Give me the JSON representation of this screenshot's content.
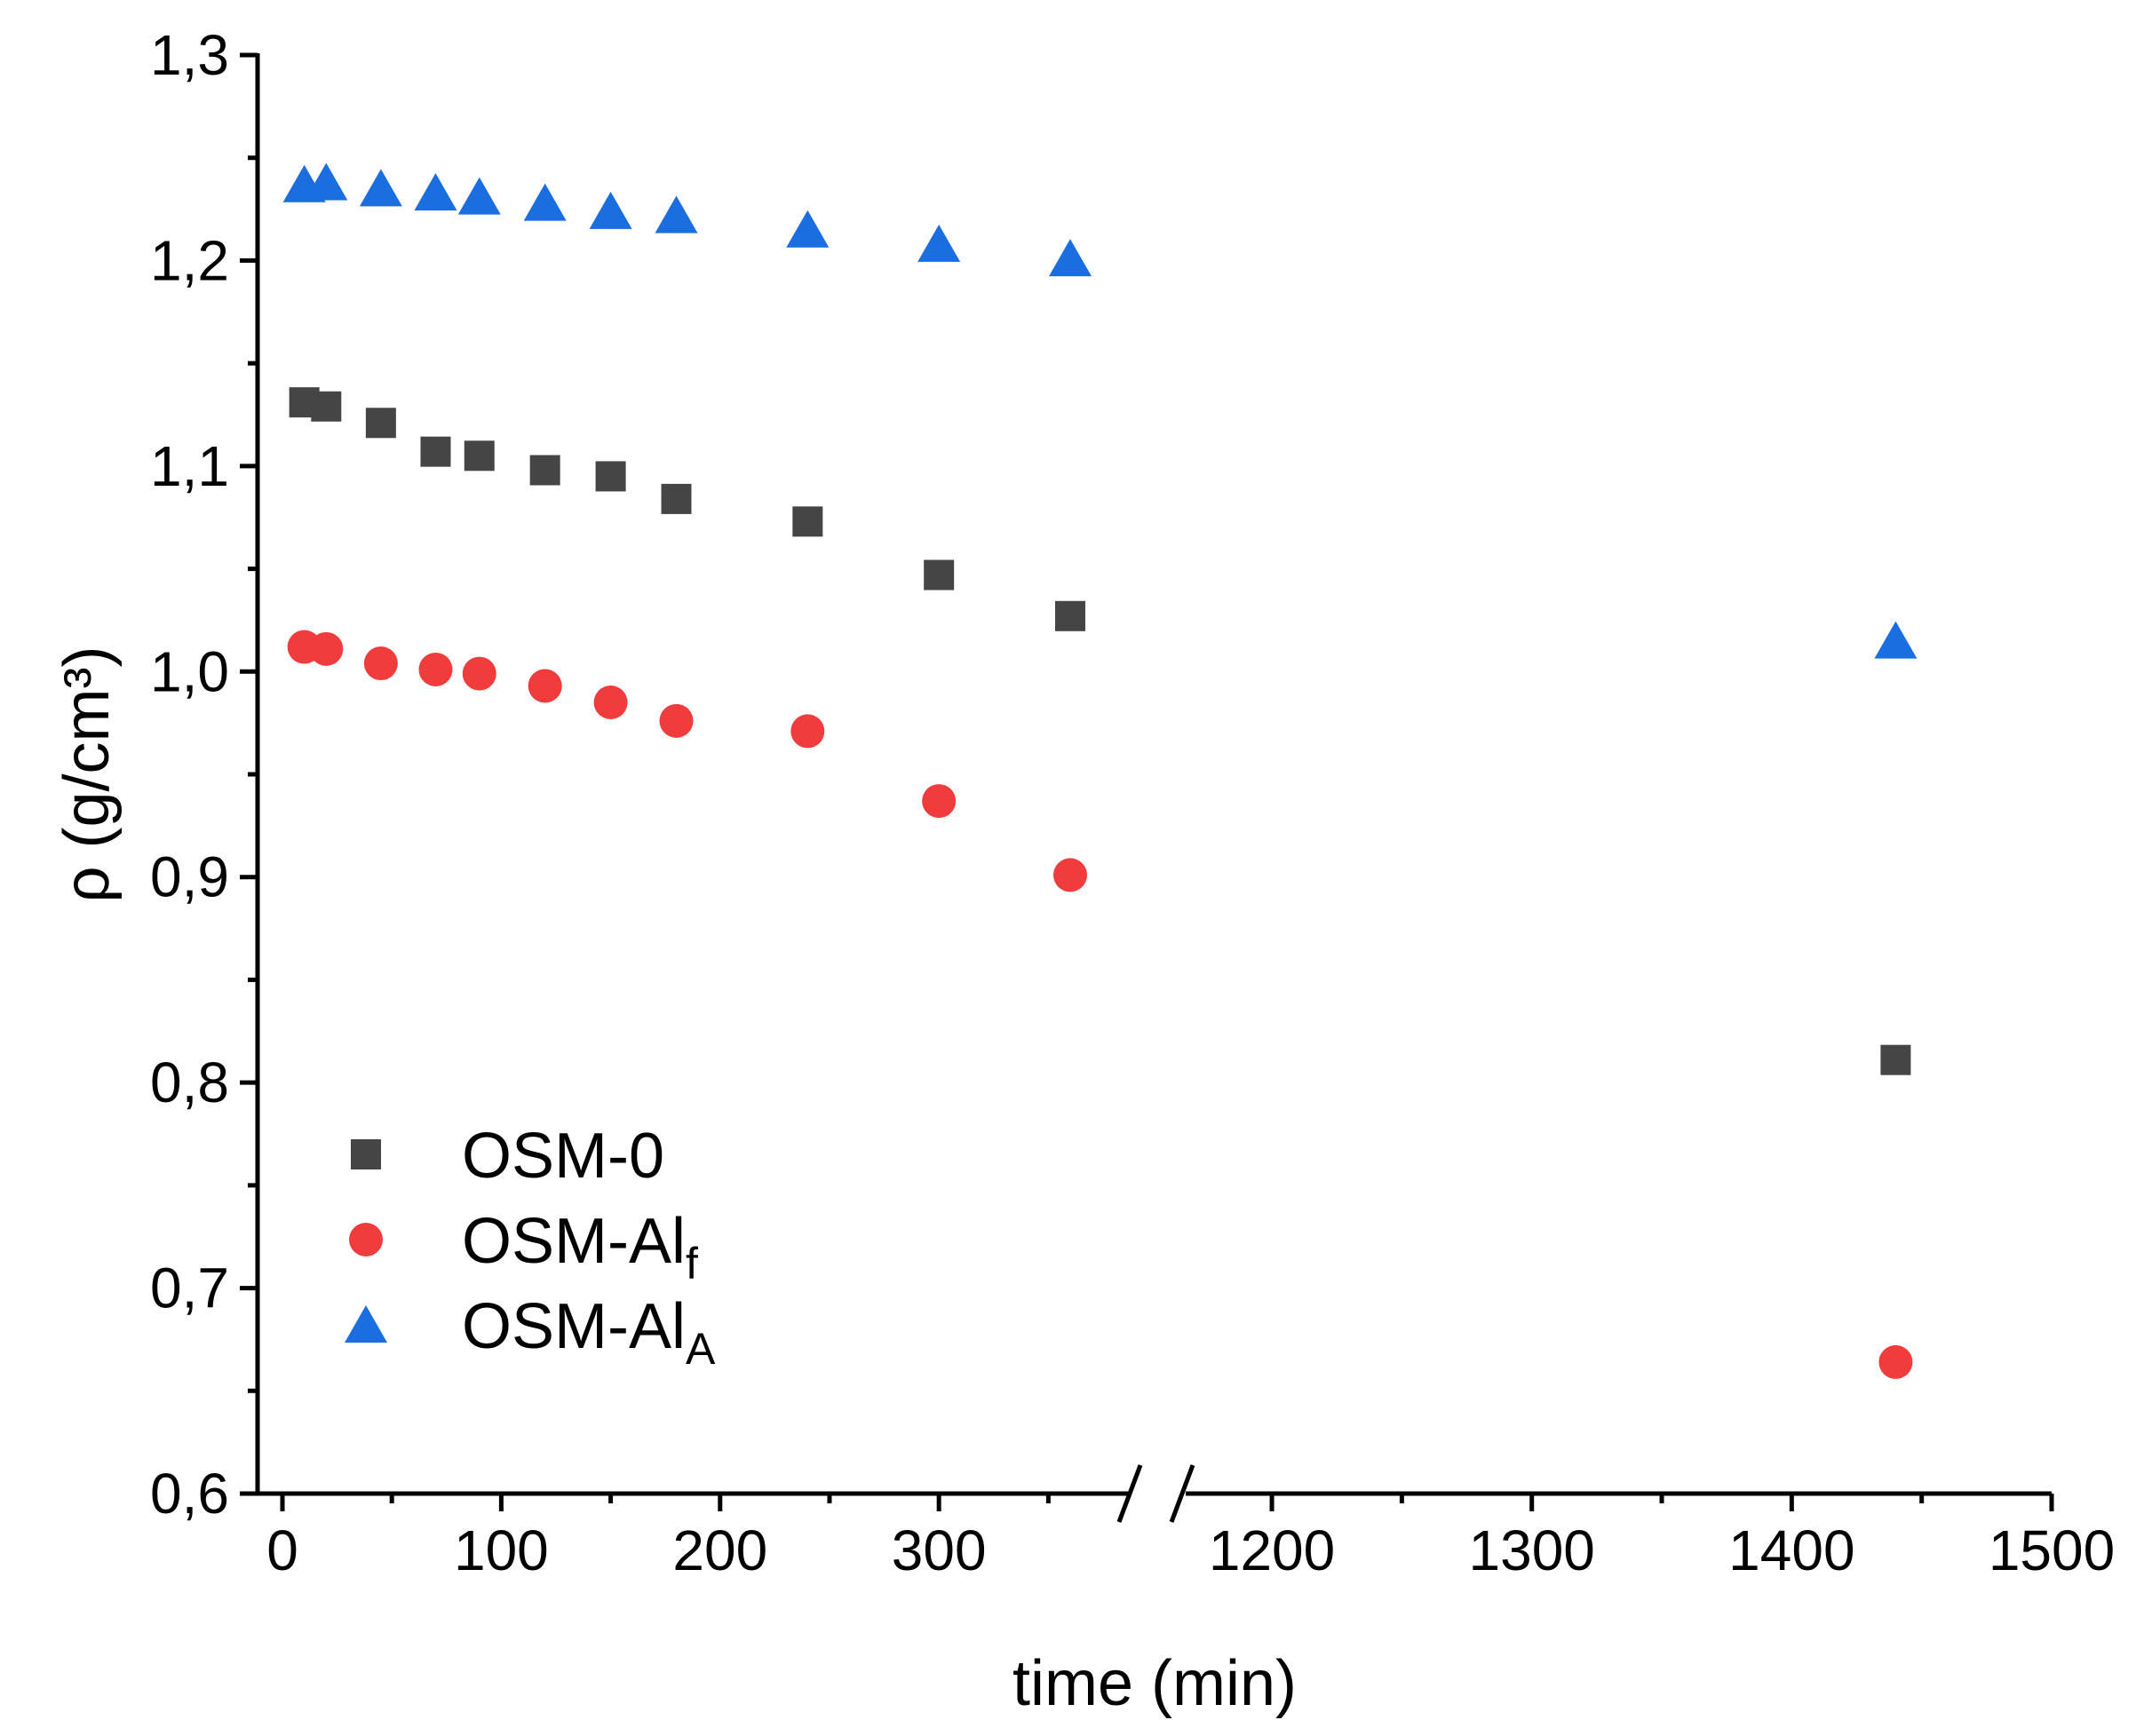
{
  "chart_data": {
    "type": "scatter",
    "xlabel": "time (min)",
    "ylabel": "ρ (g/cm³)",
    "ylim": [
      0.6,
      1.3
    ],
    "x_axis_break": {
      "left_segment": [
        0,
        360
      ],
      "right_segment": [
        1160,
        1500
      ]
    },
    "x_ticks_left": [
      "0",
      "100",
      "200",
      "300"
    ],
    "x_ticks_right": [
      "1200",
      "1300",
      "1400",
      "1500"
    ],
    "y_ticks": [
      "0,6",
      "0,7",
      "0,8",
      "0,9",
      "1,0",
      "1,1",
      "1,2",
      "1,3"
    ],
    "legend_position": "lower-left",
    "series": [
      {
        "name": "OSM-0",
        "marker": "square",
        "color": "#454545",
        "x": [
          10,
          20,
          45,
          70,
          90,
          120,
          150,
          180,
          240,
          300,
          360,
          1440
        ],
        "y": [
          1.131,
          1.129,
          1.121,
          1.107,
          1.105,
          1.098,
          1.095,
          1.084,
          1.073,
          1.047,
          1.027,
          0.811
        ]
      },
      {
        "name": "OSM-Al",
        "name_subscript": "f",
        "marker": "circle",
        "color": "#f03c3c",
        "x": [
          10,
          20,
          45,
          70,
          90,
          120,
          150,
          180,
          240,
          300,
          360,
          1440
        ],
        "y": [
          1.012,
          1.011,
          1.004,
          1.001,
          0.999,
          0.993,
          0.985,
          0.976,
          0.971,
          0.937,
          0.901,
          0.664
        ]
      },
      {
        "name": "OSM-Al",
        "name_subscript": "A",
        "marker": "triangle",
        "color": "#1a6ee0",
        "x": [
          10,
          20,
          45,
          70,
          90,
          120,
          150,
          180,
          240,
          300,
          360,
          1440
        ],
        "y": [
          1.237,
          1.238,
          1.235,
          1.233,
          1.231,
          1.228,
          1.224,
          1.222,
          1.215,
          1.208,
          1.201,
          1.015
        ]
      }
    ]
  }
}
